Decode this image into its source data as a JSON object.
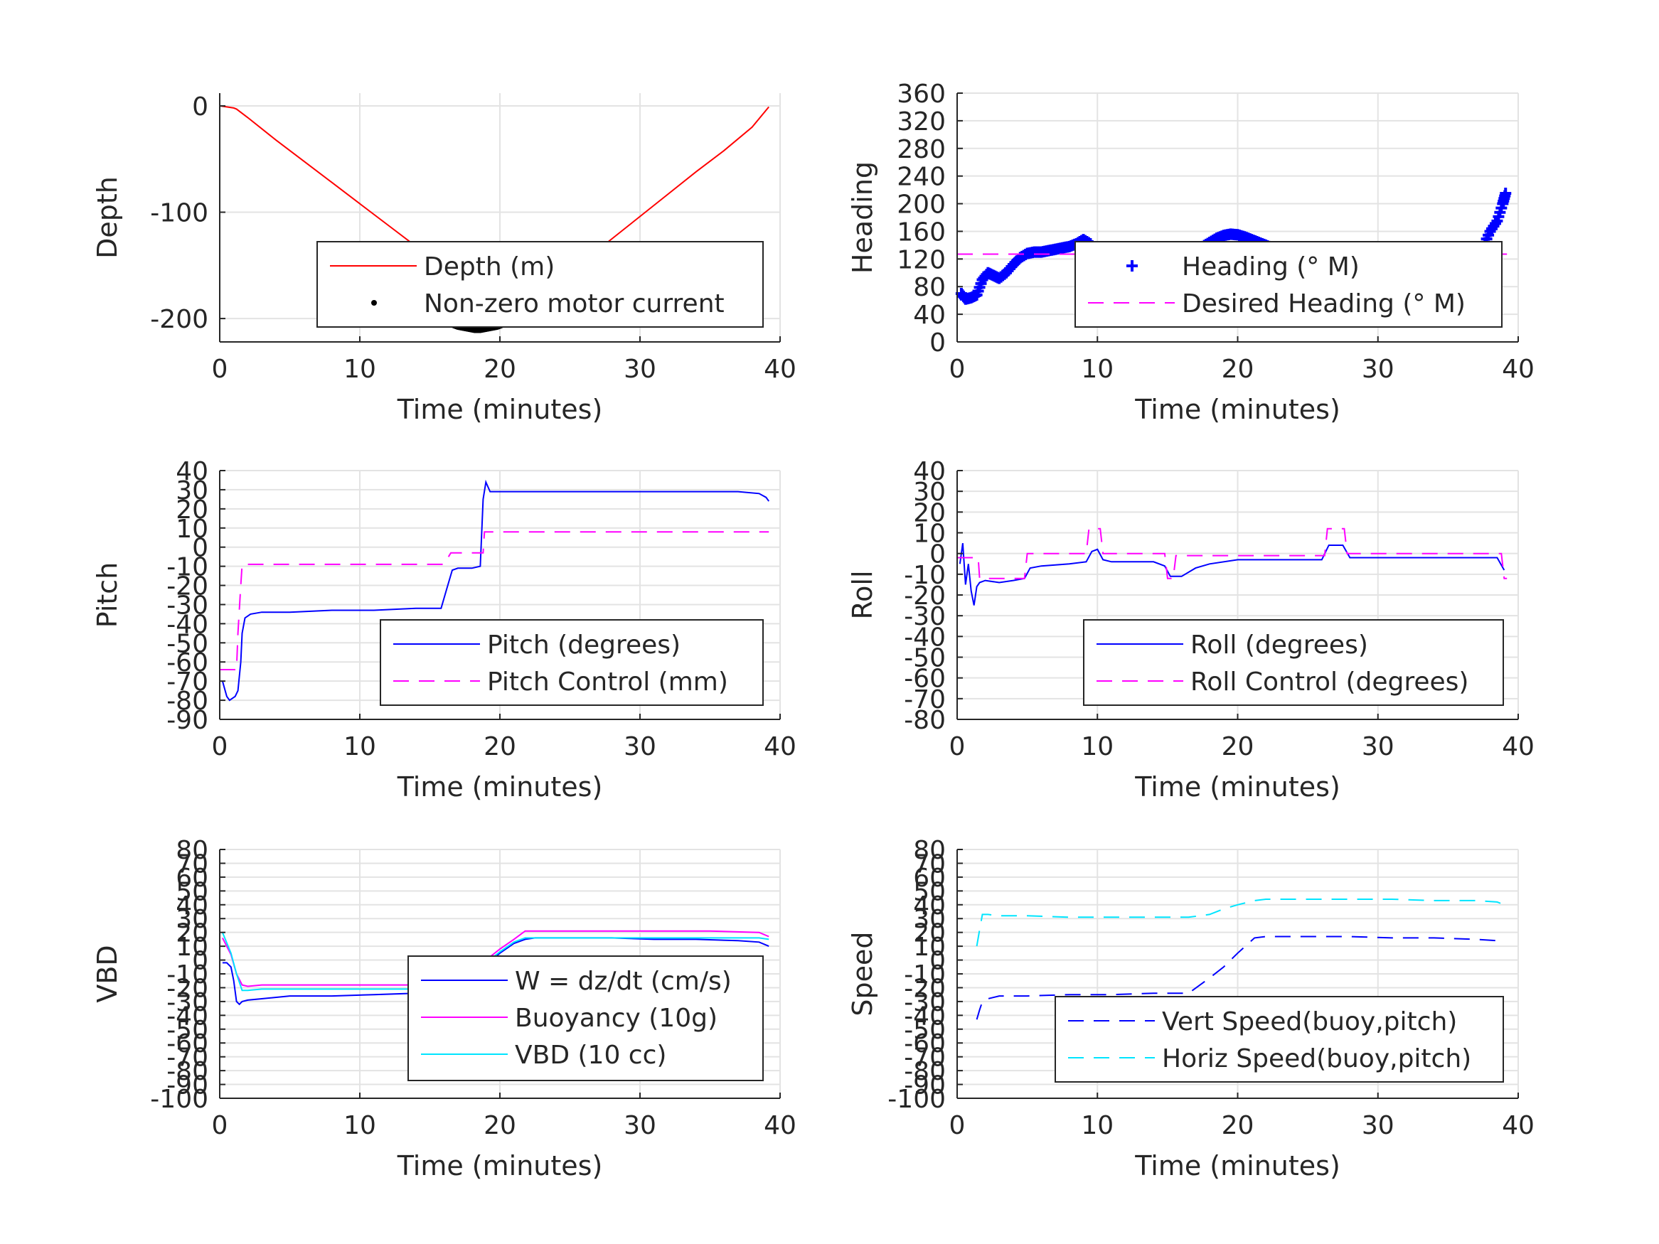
{
  "chart_data": [
    {
      "type": "line",
      "ylabel": "Depth",
      "xlabel": "Time (minutes)",
      "xlim": [
        0,
        40
      ],
      "ylim": [
        -222,
        12
      ],
      "xticks": [
        0,
        10,
        20,
        30,
        40
      ],
      "xtick_labels": [
        "0",
        "10",
        "20",
        "30",
        "40"
      ],
      "yticks": [
        0,
        -100,
        -200
      ],
      "ytick_labels": [
        "0",
        "-100",
        "-200"
      ],
      "grid": true,
      "legend_position": "lower-right",
      "series": [
        {
          "name": "Depth (m)",
          "style": "line",
          "color": "#ff0000",
          "x": [
            0,
            0.5,
            1.0,
            1.2,
            2,
            4,
            6,
            8,
            10,
            12,
            14,
            15,
            16,
            17,
            18,
            18.5,
            19,
            20,
            21,
            22,
            24,
            26,
            28,
            30,
            32,
            34,
            36,
            38,
            39.2
          ],
          "y": [
            0,
            -1,
            -2,
            -3,
            -11,
            -32,
            -52,
            -72,
            -92,
            -112,
            -132,
            -143,
            -198,
            -206,
            -209,
            -210,
            -208,
            -202,
            -195,
            -186,
            -166,
            -146,
            -125,
            -104,
            -83,
            -62,
            -42,
            -20,
            -1
          ]
        },
        {
          "name": "Non-zero motor current",
          "style": "dots",
          "color": "#000000",
          "x": [
            16.2,
            16.6,
            17.0,
            17.4,
            17.8,
            18.2,
            18.6,
            19.0,
            19.4,
            19.8,
            20.2,
            20.6,
            21.0,
            21.4,
            21.6
          ],
          "y": [
            -204,
            -206,
            -208,
            -209,
            -210,
            -211,
            -211,
            -210,
            -209,
            -208,
            -206,
            -203,
            -201,
            -198,
            -196
          ]
        }
      ]
    },
    {
      "type": "line",
      "ylabel": "Heading",
      "xlabel": "Time (minutes)",
      "xlim": [
        0,
        40
      ],
      "ylim": [
        0,
        360
      ],
      "xticks": [
        0,
        10,
        20,
        30,
        40
      ],
      "xtick_labels": [
        "0",
        "10",
        "20",
        "30",
        "40"
      ],
      "yticks": [
        0,
        40,
        80,
        120,
        160,
        200,
        240,
        280,
        320,
        360
      ],
      "ytick_labels": [
        "0",
        "40",
        "80",
        "120",
        "160",
        "200",
        "240",
        "280",
        "320",
        "360"
      ],
      "grid": true,
      "legend_position": "lower-right",
      "series": [
        {
          "name": "Heading (° M)",
          "style": "plus",
          "color": "#0000ff",
          "x": [
            0.3,
            0.6,
            1.0,
            1.4,
            1.8,
            2.2,
            2.6,
            3.0,
            3.5,
            4.0,
            4.5,
            5.0,
            5.5,
            6.0,
            6.5,
            7.0,
            7.5,
            8.0,
            8.5,
            9.0,
            9.5,
            10.0,
            10.5,
            11.0,
            11.5,
            12.0,
            12.5,
            13.0,
            13.5,
            14.0,
            14.5,
            15.0,
            15.5,
            16.0,
            16.5,
            17.0,
            17.5,
            18.0,
            18.5,
            19.0,
            19.5,
            20.0,
            20.5,
            21.0,
            21.5,
            22.0,
            22.5,
            23.0,
            23.5,
            24.0,
            24.5,
            25.0,
            25.5,
            26.0,
            26.5,
            27.0,
            27.5,
            28.0,
            28.5,
            29.0,
            29.5,
            30.0,
            30.5,
            31.0,
            31.5,
            32.0,
            32.5,
            33.0,
            33.5,
            34.0,
            34.5,
            35.0,
            35.5,
            36.0,
            36.5,
            37.0,
            37.5,
            38.0,
            38.5,
            38.9,
            39.1
          ],
          "y": [
            70,
            62,
            64,
            68,
            90,
            100,
            96,
            92,
            100,
            112,
            122,
            128,
            130,
            130,
            132,
            134,
            136,
            138,
            142,
            148,
            142,
            130,
            120,
            118,
            116,
            112,
            110,
            108,
            106,
            102,
            98,
            100,
            106,
            114,
            122,
            130,
            138,
            144,
            150,
            154,
            156,
            155,
            152,
            148,
            144,
            140,
            136,
            132,
            128,
            124,
            120,
            114,
            104,
            94,
            90,
            108,
            126,
            134,
            136,
            134,
            132,
            130,
            128,
            127,
            126,
            124,
            120,
            116,
            112,
            110,
            110,
            112,
            118,
            122,
            116,
            122,
            138,
            160,
            175,
            200,
            215
          ]
        },
        {
          "name": "Desired Heading (° M)",
          "style": "dashed",
          "color": "#ff00ff",
          "x": [
            0,
            39.2
          ],
          "y": [
            127,
            127
          ]
        }
      ]
    },
    {
      "type": "line",
      "ylabel": "Pitch",
      "xlabel": "Time (minutes)",
      "xlim": [
        0,
        40
      ],
      "ylim": [
        -90,
        40
      ],
      "xticks": [
        0,
        10,
        20,
        30,
        40
      ],
      "xtick_labels": [
        "0",
        "10",
        "20",
        "30",
        "40"
      ],
      "yticks": [
        -90,
        -80,
        -70,
        -60,
        -50,
        -40,
        -30,
        -20,
        -10,
        0,
        10,
        20,
        30,
        40
      ],
      "ytick_labels": [
        "-90",
        "-80",
        "-70",
        "-60",
        "-50",
        "-40",
        "-30",
        "-20",
        "-10",
        "0",
        "10",
        "20",
        "30",
        "40"
      ],
      "grid": true,
      "legend_position": "lower-right",
      "series": [
        {
          "name": "Pitch (degrees)",
          "style": "line",
          "color": "#0000ff",
          "x": [
            0.2,
            0.5,
            0.7,
            0.9,
            1.1,
            1.3,
            1.5,
            1.6,
            1.8,
            2.2,
            3,
            5,
            8,
            11,
            14,
            15.8,
            16.2,
            16.6,
            17,
            18,
            18.6,
            18.8,
            19.0,
            19.3,
            20,
            22,
            25,
            28,
            31,
            34,
            37,
            38.5,
            39,
            39.2
          ],
          "y": [
            -70,
            -78,
            -80,
            -79,
            -78,
            -75,
            -60,
            -45,
            -37,
            -35,
            -34,
            -34,
            -33,
            -33,
            -32,
            -32,
            -22,
            -12,
            -11,
            -11,
            -10,
            25,
            34,
            29,
            29,
            29,
            29,
            29,
            29,
            29,
            29,
            28,
            26,
            24
          ]
        },
        {
          "name": "Pitch Control (mm)",
          "style": "dashed",
          "color": "#ff00ff",
          "x": [
            0,
            1.2,
            1.3,
            1.5,
            1.6,
            2,
            16,
            16.5,
            18.8,
            18.9,
            39.2
          ],
          "y": [
            -64,
            -64,
            -45,
            -20,
            -9,
            -9,
            -9,
            -3,
            -3,
            8,
            8
          ]
        }
      ]
    },
    {
      "type": "line",
      "ylabel": "Roll",
      "xlabel": "Time (minutes)",
      "xlim": [
        0,
        40
      ],
      "ylim": [
        -80,
        40
      ],
      "xticks": [
        0,
        10,
        20,
        30,
        40
      ],
      "xtick_labels": [
        "0",
        "10",
        "20",
        "30",
        "40"
      ],
      "yticks": [
        -80,
        -70,
        -60,
        -50,
        -40,
        -30,
        -20,
        -10,
        0,
        10,
        20,
        30,
        40
      ],
      "ytick_labels": [
        "-80",
        "-70",
        "-60",
        "-50",
        "-40",
        "-30",
        "-20",
        "-10",
        "0",
        "10",
        "20",
        "30",
        "40"
      ],
      "grid": true,
      "legend_position": "lower-right",
      "series": [
        {
          "name": "Roll (degrees)",
          "style": "line",
          "color": "#0000ff",
          "x": [
            0.2,
            0.4,
            0.6,
            0.8,
            1.0,
            1.2,
            1.4,
            1.6,
            2,
            3,
            4,
            4.8,
            5.2,
            6,
            8,
            9.2,
            9.6,
            10,
            10.4,
            11,
            14,
            14.8,
            15.2,
            16,
            17,
            18,
            20,
            22,
            26,
            26.5,
            27,
            27.5,
            28,
            30,
            33,
            36,
            38.5,
            39.0
          ],
          "y": [
            -5,
            5,
            -15,
            -5,
            -18,
            -25,
            -16,
            -14,
            -13,
            -14,
            -13,
            -12,
            -7,
            -6,
            -5,
            -4,
            1,
            2,
            -3,
            -4,
            -4,
            -6,
            -11,
            -11,
            -7,
            -5,
            -3,
            -3,
            -3,
            4,
            4,
            4,
            -2,
            -2,
            -2,
            -2,
            -2,
            -8
          ]
        },
        {
          "name": "Roll Control (degrees)",
          "style": "dashed",
          "color": "#ff00ff",
          "x": [
            0,
            1.5,
            1.6,
            4.8,
            5.0,
            9.2,
            9.4,
            10.2,
            10.4,
            14.8,
            15.0,
            15.4,
            15.6,
            26.2,
            26.4,
            27.6,
            27.8,
            38.8,
            39.0,
            39.2
          ],
          "y": [
            -2,
            -2,
            -12,
            -12,
            0,
            0,
            12,
            12,
            0,
            0,
            -12,
            -12,
            -1,
            -1,
            12,
            12,
            0,
            0,
            -12,
            -12
          ]
        }
      ]
    },
    {
      "type": "line",
      "ylabel": "VBD",
      "xlabel": "Time (minutes)",
      "xlim": [
        0,
        40
      ],
      "ylim": [
        -100,
        80
      ],
      "xticks": [
        0,
        10,
        20,
        30,
        40
      ],
      "xtick_labels": [
        "0",
        "10",
        "20",
        "30",
        "40"
      ],
      "yticks": [
        -100,
        -90,
        -80,
        -70,
        -60,
        -50,
        -40,
        -30,
        -20,
        -10,
        0,
        10,
        20,
        30,
        40,
        50,
        60,
        70,
        80
      ],
      "ytick_labels": [
        "-100",
        "-90",
        "-80",
        "-70",
        "-60",
        "-50",
        "-40",
        "-30",
        "-20",
        "-10",
        "0",
        "10",
        "20",
        "30",
        "40",
        "50",
        "60",
        "70",
        "80"
      ],
      "grid": true,
      "legend_position": "lower-right",
      "series": [
        {
          "name": "W = dz/dt (cm/s)",
          "style": "line",
          "color": "#0000ff",
          "x": [
            0.2,
            0.5,
            0.8,
            1.0,
            1.2,
            1.4,
            1.6,
            2,
            3,
            5,
            8,
            11,
            14,
            16,
            16.5,
            17,
            18,
            19,
            20,
            21,
            21.8,
            22.5,
            25,
            28,
            31,
            34,
            37,
            38.5,
            39.2
          ],
          "y": [
            -2,
            -2,
            -5,
            -15,
            -30,
            -32,
            -30,
            -29,
            -28,
            -26,
            -26,
            -25,
            -24,
            -23,
            -16,
            -14,
            -10,
            -4,
            5,
            12,
            15,
            16,
            16,
            16,
            15,
            15,
            14,
            13,
            10
          ]
        },
        {
          "name": "Buoyancy (10g)",
          "style": "line",
          "color": "#ff00ff",
          "x": [
            0.2,
            0.8,
            1.2,
            1.6,
            2,
            3,
            5,
            8,
            11,
            14,
            15.8,
            16.5,
            17,
            18,
            19,
            20,
            21,
            21.8,
            25,
            30,
            35,
            38.5,
            39.2
          ],
          "y": [
            16,
            4,
            -10,
            -18,
            -19,
            -18,
            -18,
            -18,
            -18,
            -18,
            -18,
            -17,
            -10,
            -5,
            0,
            8,
            15,
            21,
            21,
            21,
            21,
            20,
            17
          ]
        },
        {
          "name": "VBD (10 cc)",
          "style": "line",
          "color": "#00e5ff",
          "x": [
            0.2,
            0.8,
            1.2,
            1.6,
            2,
            3,
            5,
            8,
            11,
            14,
            16,
            16.5,
            17,
            18,
            19,
            20,
            21,
            21.8,
            25,
            30,
            35,
            38.5,
            39.2
          ],
          "y": [
            20,
            5,
            -10,
            -22,
            -22,
            -21,
            -21,
            -21,
            -21,
            -21,
            -21,
            -20,
            -14,
            -8,
            -2,
            6,
            13,
            16,
            16,
            16,
            16,
            16,
            15
          ]
        }
      ]
    },
    {
      "type": "line",
      "ylabel": "Speed",
      "xlabel": "Time (minutes)",
      "xlim": [
        0,
        40
      ],
      "ylim": [
        -100,
        80
      ],
      "xticks": [
        0,
        10,
        20,
        30,
        40
      ],
      "xtick_labels": [
        "0",
        "10",
        "20",
        "30",
        "40"
      ],
      "yticks": [
        -100,
        -90,
        -80,
        -70,
        -60,
        -50,
        -40,
        -30,
        -20,
        -10,
        0,
        10,
        20,
        30,
        40,
        50,
        60,
        70,
        80
      ],
      "ytick_labels": [
        "-100",
        "-90",
        "-80",
        "-70",
        "-60",
        "-50",
        "-40",
        "-30",
        "-20",
        "-10",
        "0",
        "10",
        "20",
        "30",
        "40",
        "50",
        "60",
        "70",
        "80"
      ],
      "grid": true,
      "legend_position": "lower-right",
      "series": [
        {
          "name": "Vert Speed(buoy,pitch)",
          "style": "dashed",
          "color": "#0000ff",
          "x": [
            1.4,
            1.6,
            1.8,
            2.2,
            3,
            5,
            8,
            11,
            14,
            16.5,
            18,
            19,
            20,
            21.2,
            22,
            25,
            28,
            31,
            34,
            37,
            38.5,
            39.0
          ],
          "y": [
            -43,
            -36,
            -30,
            -28,
            -26,
            -26,
            -25,
            -25,
            -24,
            -24,
            -13,
            -5,
            5,
            16,
            17,
            17,
            17,
            16,
            16,
            15,
            14,
            13
          ]
        },
        {
          "name": "Horiz Speed(buoy,pitch)",
          "style": "dashed",
          "color": "#00e5ff",
          "x": [
            1.4,
            1.6,
            1.8,
            2.2,
            3,
            5,
            8,
            11,
            14,
            16.5,
            18,
            19,
            20,
            21.2,
            22,
            25,
            28,
            31,
            34,
            37,
            38.5,
            39.0
          ],
          "y": [
            10,
            22,
            33,
            33,
            32,
            32,
            31,
            31,
            31,
            31,
            33,
            37,
            40,
            43,
            44,
            44,
            44,
            44,
            43,
            43,
            42,
            40
          ]
        }
      ]
    }
  ]
}
